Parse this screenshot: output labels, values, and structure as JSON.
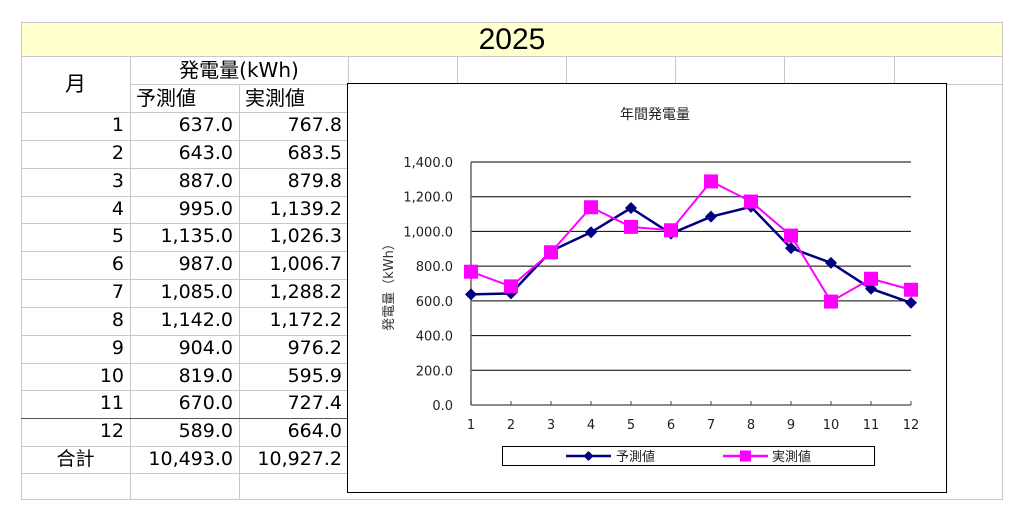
{
  "sheet": {
    "title": "2025",
    "header": {
      "month_label": "月",
      "group_label": "発電量(kWh)",
      "forecast_label": "予測値",
      "actual_label": "実測値"
    },
    "rows": [
      {
        "month": "1",
        "forecast": "637.0",
        "actual": "767.8"
      },
      {
        "month": "2",
        "forecast": "643.0",
        "actual": "683.5"
      },
      {
        "month": "3",
        "forecast": "887.0",
        "actual": "879.8"
      },
      {
        "month": "4",
        "forecast": "995.0",
        "actual": "1,139.2"
      },
      {
        "month": "5",
        "forecast": "1,135.0",
        "actual": "1,026.3"
      },
      {
        "month": "6",
        "forecast": "987.0",
        "actual": "1,006.7"
      },
      {
        "month": "7",
        "forecast": "1,085.0",
        "actual": "1,288.2"
      },
      {
        "month": "8",
        "forecast": "1,142.0",
        "actual": "1,172.2"
      },
      {
        "month": "9",
        "forecast": "904.0",
        "actual": "976.2"
      },
      {
        "month": "10",
        "forecast": "819.0",
        "actual": "595.9"
      },
      {
        "month": "11",
        "forecast": "670.0",
        "actual": "727.4"
      },
      {
        "month": "12",
        "forecast": "589.0",
        "actual": "664.0"
      }
    ],
    "total": {
      "label": "合計",
      "forecast": "10,493.0",
      "actual": "10,927.2"
    }
  },
  "chart_data": {
    "type": "line",
    "title": "年間発電量",
    "xlabel": "",
    "ylabel": "発電量（kWh）",
    "categories": [
      "1",
      "2",
      "3",
      "4",
      "5",
      "6",
      "7",
      "8",
      "9",
      "10",
      "11",
      "12"
    ],
    "series": [
      {
        "name": "予測値",
        "color": "#000080",
        "marker": "diamond",
        "values": [
          637.0,
          643.0,
          887.0,
          995.0,
          1135.0,
          987.0,
          1085.0,
          1142.0,
          904.0,
          819.0,
          670.0,
          589.0
        ]
      },
      {
        "name": "実測値",
        "color": "#ff00ff",
        "marker": "square",
        "values": [
          767.8,
          683.5,
          879.8,
          1139.2,
          1026.3,
          1006.7,
          1288.2,
          1172.2,
          976.2,
          595.9,
          727.4,
          664.0
        ]
      }
    ],
    "ylim": [
      0,
      1400
    ],
    "yticks": [
      "0.0",
      "200.0",
      "400.0",
      "600.0",
      "800.0",
      "1,000.0",
      "1,200.0",
      "1,400.0"
    ],
    "grid": true,
    "legend_position": "bottom"
  }
}
